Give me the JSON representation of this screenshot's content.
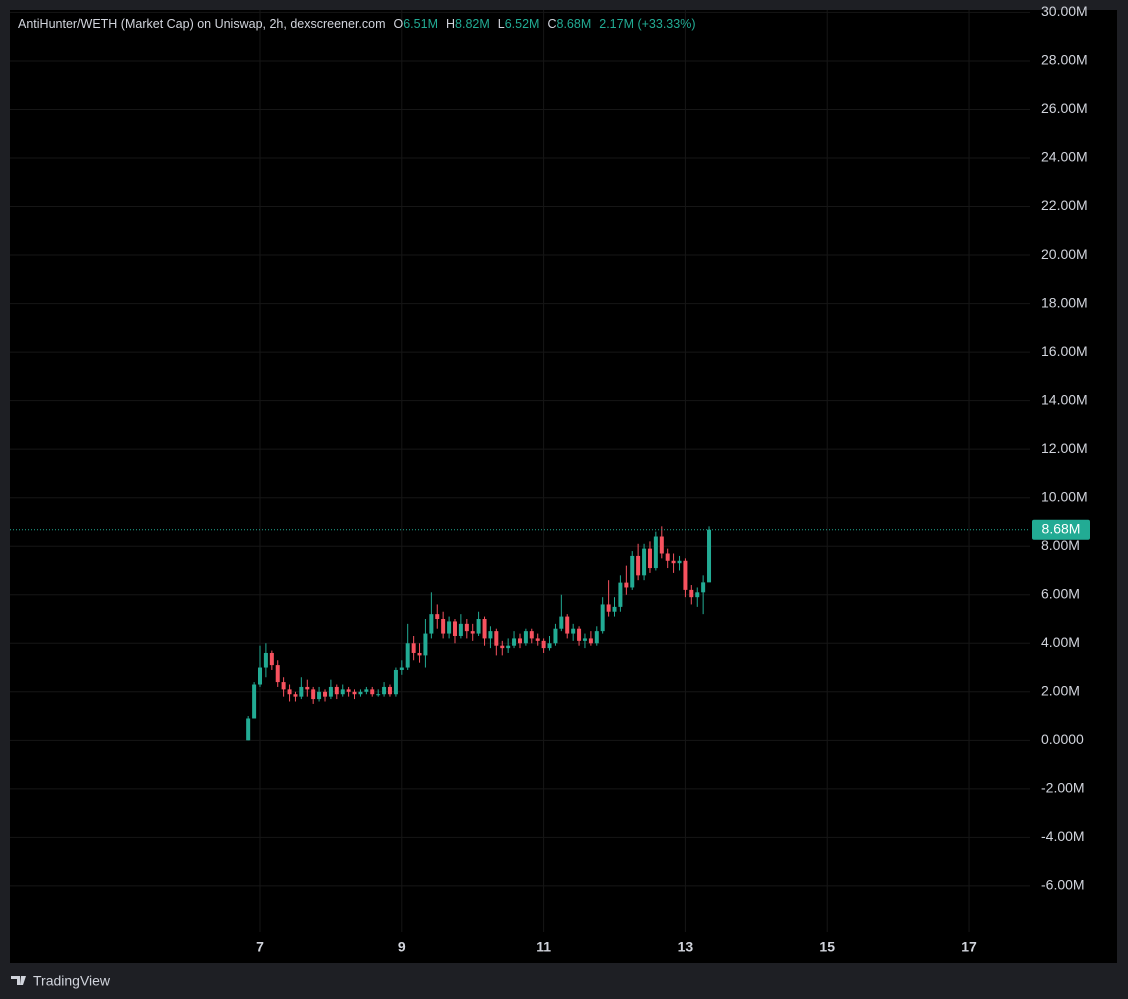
{
  "chart_data": {
    "type": "candlestick",
    "title": "AntiHunter/WETH (Market Cap) on Uniswap, 2h, dexscreener.com",
    "ohlc_legend": {
      "o_label": "O",
      "o": "6.51M",
      "h_label": "H",
      "h": "8.82M",
      "l_label": "L",
      "l": "6.52M",
      "c_label": "C",
      "c": "8.68M",
      "change": "2.17M (+33.33%)"
    },
    "last_price_label": "8.68M",
    "up_color": "#22ab94",
    "down_color": "#f7525f",
    "grid": true,
    "x": [
      6.833,
      6.917,
      7.0,
      7.083,
      7.167,
      7.25,
      7.333,
      7.417,
      7.5,
      7.583,
      7.667,
      7.75,
      7.833,
      7.917,
      8.0,
      8.083,
      8.167,
      8.25,
      8.333,
      8.417,
      8.5,
      8.583,
      8.667,
      8.75,
      8.833,
      8.917,
      9.0,
      9.083,
      9.167,
      9.25,
      9.333,
      9.417,
      9.5,
      9.583,
      9.667,
      9.75,
      9.833,
      9.917,
      10.0,
      10.083,
      10.167,
      10.25,
      10.333,
      10.417,
      10.5,
      10.583,
      10.667,
      10.75,
      10.833,
      10.917,
      11.0,
      11.083,
      11.167,
      11.25,
      11.333,
      11.417,
      11.5,
      11.583,
      11.667,
      11.75,
      11.833,
      11.917,
      12.0,
      12.083,
      12.167,
      12.25,
      12.333,
      12.417,
      12.5,
      12.583,
      12.667,
      12.75,
      12.833,
      12.917,
      13.0,
      13.083,
      13.167,
      13.25,
      13.333
    ],
    "open": [
      0.0,
      0.9,
      2.3,
      3.0,
      3.6,
      3.1,
      2.4,
      2.1,
      1.9,
      1.8,
      2.2,
      2.1,
      1.7,
      2.0,
      1.8,
      2.2,
      1.9,
      2.1,
      2.0,
      1.9,
      2.0,
      2.1,
      1.9,
      1.9,
      2.2,
      1.9,
      2.9,
      3.0,
      4.0,
      3.6,
      3.5,
      4.4,
      5.2,
      5.0,
      4.4,
      4.9,
      4.3,
      4.8,
      4.5,
      4.4,
      5.0,
      4.2,
      4.5,
      3.9,
      3.8,
      3.9,
      4.2,
      4.0,
      4.5,
      4.2,
      4.1,
      3.8,
      4.0,
      4.6,
      5.1,
      4.4,
      4.6,
      4.1,
      4.2,
      4.0,
      4.5,
      5.6,
      5.3,
      5.5,
      6.5,
      6.3,
      7.6,
      6.8,
      7.9,
      7.1,
      8.4,
      7.7,
      7.4,
      7.3,
      7.4,
      6.2,
      5.9,
      6.1,
      6.51
    ],
    "high": [
      1.0,
      2.4,
      3.9,
      4.0,
      3.7,
      3.3,
      2.6,
      2.3,
      2.0,
      2.6,
      2.5,
      2.2,
      2.2,
      2.1,
      2.5,
      2.3,
      2.3,
      2.2,
      2.1,
      2.1,
      2.2,
      2.2,
      2.1,
      2.4,
      2.3,
      3.0,
      3.3,
      4.8,
      4.3,
      4.0,
      5.0,
      6.1,
      5.6,
      5.3,
      5.1,
      5.0,
      5.2,
      5.0,
      4.8,
      5.3,
      5.1,
      4.7,
      4.6,
      4.1,
      4.2,
      4.5,
      4.4,
      4.6,
      4.6,
      4.4,
      4.2,
      4.3,
      4.8,
      6.0,
      5.2,
      4.8,
      4.7,
      4.4,
      4.5,
      4.7,
      5.9,
      6.6,
      5.9,
      6.8,
      7.2,
      7.8,
      8.1,
      8.1,
      8.2,
      8.6,
      8.82,
      7.9,
      7.7,
      7.6,
      7.5,
      6.4,
      6.3,
      6.8,
      8.82
    ],
    "low": [
      0.0,
      0.9,
      2.2,
      2.6,
      2.9,
      2.2,
      1.8,
      1.6,
      1.6,
      1.7,
      1.8,
      1.5,
      1.6,
      1.6,
      1.7,
      1.7,
      1.8,
      1.8,
      1.7,
      1.8,
      1.9,
      1.8,
      1.8,
      1.8,
      1.8,
      1.8,
      2.7,
      2.9,
      3.3,
      3.2,
      3.0,
      4.2,
      4.6,
      4.2,
      4.2,
      4.0,
      4.2,
      4.2,
      4.1,
      4.3,
      3.9,
      3.8,
      3.5,
      3.5,
      3.6,
      3.8,
      3.8,
      3.9,
      4.0,
      3.9,
      3.6,
      3.7,
      3.9,
      4.5,
      4.2,
      4.1,
      3.9,
      3.8,
      3.9,
      3.9,
      4.4,
      5.1,
      5.1,
      5.3,
      6.0,
      6.2,
      6.6,
      6.6,
      6.9,
      7.0,
      7.5,
      7.1,
      6.9,
      7.0,
      5.9,
      5.6,
      5.5,
      5.2,
      6.52
    ],
    "close": [
      0.9,
      2.3,
      3.0,
      3.6,
      3.1,
      2.4,
      2.1,
      1.9,
      1.8,
      2.2,
      2.1,
      1.7,
      2.0,
      1.8,
      2.2,
      1.9,
      2.1,
      2.0,
      1.9,
      2.0,
      2.1,
      1.9,
      1.9,
      2.2,
      1.9,
      2.9,
      3.0,
      4.0,
      3.6,
      3.5,
      4.4,
      5.2,
      5.0,
      4.4,
      4.9,
      4.3,
      4.8,
      4.5,
      4.4,
      5.0,
      4.2,
      4.5,
      3.9,
      3.8,
      3.9,
      4.2,
      4.0,
      4.5,
      4.2,
      4.1,
      3.8,
      4.0,
      4.6,
      5.1,
      4.4,
      4.6,
      4.1,
      4.2,
      4.0,
      4.5,
      5.6,
      5.3,
      5.5,
      6.5,
      6.3,
      7.6,
      6.8,
      7.9,
      7.1,
      8.4,
      7.7,
      7.4,
      7.3,
      7.4,
      6.2,
      5.9,
      6.1,
      6.51,
      8.68
    ],
    "xlim": [
      3.474,
      17.86
    ],
    "xticks": [
      7,
      9,
      11,
      13,
      15,
      17
    ],
    "ylim": [
      -7.9,
      30.1
    ],
    "yticks": [
      {
        "value": -6,
        "label": "-6.00M"
      },
      {
        "value": -4,
        "label": "-4.00M"
      },
      {
        "value": -2,
        "label": "-2.00M"
      },
      {
        "value": 0,
        "label": "0.0000"
      },
      {
        "value": 2,
        "label": "2.00M"
      },
      {
        "value": 4,
        "label": "4.00M"
      },
      {
        "value": 6,
        "label": "6.00M"
      },
      {
        "value": 8,
        "label": "8.00M"
      },
      {
        "value": 10,
        "label": "10.00M"
      },
      {
        "value": 12,
        "label": "12.00M"
      },
      {
        "value": 14,
        "label": "14.00M"
      },
      {
        "value": 16,
        "label": "16.00M"
      },
      {
        "value": 18,
        "label": "18.00M"
      },
      {
        "value": 20,
        "label": "20.00M"
      },
      {
        "value": 22,
        "label": "22.00M"
      },
      {
        "value": 24,
        "label": "24.00M"
      },
      {
        "value": 26,
        "label": "26.00M"
      },
      {
        "value": 28,
        "label": "28.00M"
      },
      {
        "value": 30,
        "label": "30.00M"
      }
    ],
    "footer": "TradingView"
  }
}
